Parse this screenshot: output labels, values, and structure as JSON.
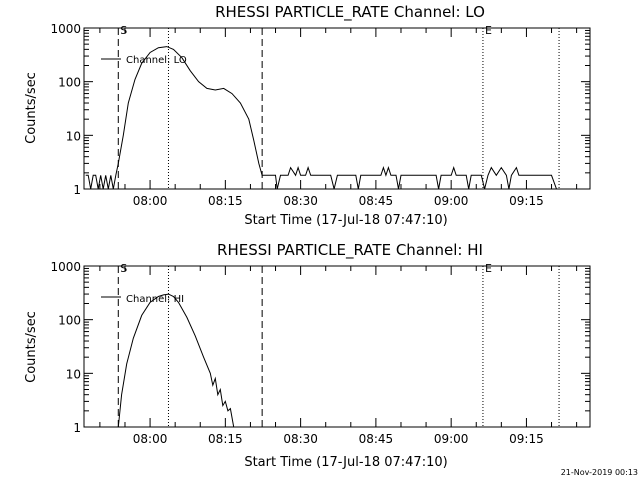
{
  "footer": {
    "timestamp": "21-Nov-2019 00:13"
  },
  "chart_data": [
    {
      "type": "line",
      "title": "RHESSI PARTICLE_RATE Channel: LO",
      "xlabel": "Start Time (17-Jul-18 07:47:10)",
      "ylabel": "Counts/sec",
      "yscale": "log",
      "ylim": [
        1,
        1000
      ],
      "y_ticks": [
        {
          "value": 1,
          "label": "1"
        },
        {
          "value": 10,
          "label": "10"
        },
        {
          "value": 100,
          "label": "100"
        },
        {
          "value": 1000,
          "label": "1000"
        }
      ],
      "x_ticks": [
        {
          "value": "08:00",
          "label": "08:00"
        },
        {
          "value": "08:15",
          "label": "08:15"
        },
        {
          "value": "08:30",
          "label": "08:30"
        },
        {
          "value": "08:45",
          "label": "08:45"
        },
        {
          "value": "09:00",
          "label": "09:00"
        },
        {
          "value": "09:15",
          "label": "09:15"
        }
      ],
      "xlim": [
        "07:46:50",
        "09:27:40"
      ],
      "markers": [
        {
          "time": "07:53:40",
          "style": "dashed",
          "label": "S"
        },
        {
          "time": "08:03:40",
          "style": "dotted",
          "label": ""
        },
        {
          "time": "08:22:20",
          "style": "dashed",
          "label": ""
        },
        {
          "time": "09:06:20",
          "style": "dotted",
          "label": "E"
        },
        {
          "time": "09:21:30",
          "style": "dotted",
          "label": ""
        }
      ],
      "legend": {
        "location": "top-left",
        "entries": [
          "Channel: LO"
        ]
      },
      "series": [
        {
          "name": "Channel: LO",
          "x": [
            "07:47:10",
            "07:47:40",
            "07:48:10",
            "07:48:40",
            "07:49:10",
            "07:49:40",
            "07:50:10",
            "07:50:40",
            "07:51:10",
            "07:51:40",
            "07:52:10",
            "07:52:40",
            "07:53:10",
            "07:53:40",
            "07:54:40",
            "07:55:40",
            "07:57:00",
            "07:58:20",
            "08:00:00",
            "08:01:40",
            "08:03:20",
            "08:04:40",
            "08:06:20",
            "08:08:00",
            "08:09:40",
            "08:11:20",
            "08:13:00",
            "08:14:40",
            "08:16:20",
            "08:18:00",
            "08:19:40",
            "08:20:40",
            "08:21:40",
            "08:22:20",
            "08:23:00",
            "08:24:00",
            "08:25:00",
            "08:25:20",
            "08:26:00",
            "08:26:30",
            "08:27:30",
            "08:28:00",
            "08:29:00",
            "08:29:30",
            "08:30:00",
            "08:31:00",
            "08:31:30",
            "08:32:00",
            "08:33:00",
            "08:35:00",
            "08:36:00",
            "08:36:40",
            "08:37:20",
            "08:40:00",
            "08:41:00",
            "08:41:30",
            "08:42:00",
            "08:43:00",
            "08:44:00",
            "08:45:00",
            "08:46:00",
            "08:46:30",
            "08:47:00",
            "08:47:30",
            "08:48:00",
            "08:49:00",
            "08:49:30",
            "08:50:00",
            "08:51:00",
            "08:52:00",
            "08:53:00",
            "08:56:00",
            "08:57:00",
            "08:57:30",
            "08:58:00",
            "09:00:00",
            "09:00:30",
            "09:01:00",
            "09:02:00",
            "09:03:00",
            "09:03:30",
            "09:04:00",
            "09:05:00",
            "09:06:00",
            "09:06:40",
            "09:07:20",
            "09:08:00",
            "09:09:00",
            "09:10:00",
            "09:11:00",
            "09:11:30",
            "09:12:00",
            "09:13:00",
            "09:13:30",
            "09:14:00",
            "09:15:00",
            "09:15:30",
            "09:16:00",
            "09:18:00",
            "09:20:00",
            "09:21:00",
            "09:21:30"
          ],
          "y": [
            1.8,
            1.8,
            1,
            1.8,
            1.8,
            1,
            1.8,
            1,
            1.8,
            1,
            1.8,
            1,
            1.8,
            3,
            10,
            40,
            110,
            220,
            350,
            430,
            450,
            400,
            280,
            160,
            100,
            75,
            70,
            75,
            60,
            40,
            20,
            8,
            3,
            1.8,
            1.8,
            1.8,
            1.8,
            1,
            1.8,
            1.8,
            1.8,
            2.5,
            1.8,
            2.5,
            1.8,
            1.8,
            2.5,
            1.8,
            1.8,
            1.8,
            1.8,
            1,
            1.8,
            1.8,
            1.8,
            1,
            1.8,
            1.8,
            1.8,
            1.8,
            1.8,
            2.5,
            1.8,
            2.5,
            1.8,
            1.8,
            1,
            1.8,
            1.8,
            1.8,
            1.8,
            1.8,
            1.8,
            1,
            1.8,
            1.8,
            2.5,
            1.8,
            1.8,
            1.8,
            1,
            1.8,
            1.8,
            1.8,
            1,
            1.8,
            2.5,
            1.8,
            2.5,
            1.8,
            1,
            1.8,
            2.5,
            1.8,
            1.8,
            1.8,
            1.8,
            1.8,
            1.8,
            1.8,
            1,
            1
          ]
        }
      ]
    },
    {
      "type": "line",
      "title": "RHESSI PARTICLE_RATE Channel: HI",
      "xlabel": "Start Time (17-Jul-18 07:47:10)",
      "ylabel": "Counts/sec",
      "yscale": "log",
      "ylim": [
        1,
        1000
      ],
      "y_ticks": [
        {
          "value": 1,
          "label": "1"
        },
        {
          "value": 10,
          "label": "10"
        },
        {
          "value": 100,
          "label": "100"
        },
        {
          "value": 1000,
          "label": "1000"
        }
      ],
      "x_ticks": [
        {
          "value": "08:00",
          "label": "08:00"
        },
        {
          "value": "08:15",
          "label": "08:15"
        },
        {
          "value": "08:30",
          "label": "08:30"
        },
        {
          "value": "08:45",
          "label": "08:45"
        },
        {
          "value": "09:00",
          "label": "09:00"
        },
        {
          "value": "09:15",
          "label": "09:15"
        }
      ],
      "xlim": [
        "07:46:50",
        "09:27:40"
      ],
      "markers": [
        {
          "time": "07:53:40",
          "style": "dashed",
          "label": "S"
        },
        {
          "time": "08:03:40",
          "style": "dotted",
          "label": ""
        },
        {
          "time": "08:22:20",
          "style": "dashed",
          "label": ""
        },
        {
          "time": "09:06:20",
          "style": "dotted",
          "label": "E"
        },
        {
          "time": "09:21:30",
          "style": "dotted",
          "label": ""
        }
      ],
      "legend": {
        "location": "top-left",
        "entries": [
          "Channel: HI"
        ]
      },
      "series": [
        {
          "name": "Channel: HI",
          "x": [
            "07:53:40",
            "07:54:20",
            "07:55:20",
            "07:56:40",
            "07:58:20",
            "08:00:00",
            "08:01:40",
            "08:02:40",
            "08:03:40",
            "08:04:40",
            "08:05:40",
            "08:07:20",
            "08:09:00",
            "08:10:40",
            "08:12:00",
            "08:12:30",
            "08:13:00",
            "08:13:30",
            "08:14:00",
            "08:14:30",
            "08:15:00",
            "08:15:30",
            "08:16:00",
            "08:16:40"
          ],
          "y": [
            1,
            4,
            15,
            45,
            120,
            210,
            270,
            290,
            300,
            270,
            210,
            110,
            50,
            20,
            10,
            6,
            8,
            4,
            5,
            2.5,
            3,
            2,
            2.2,
            1
          ]
        }
      ]
    }
  ]
}
